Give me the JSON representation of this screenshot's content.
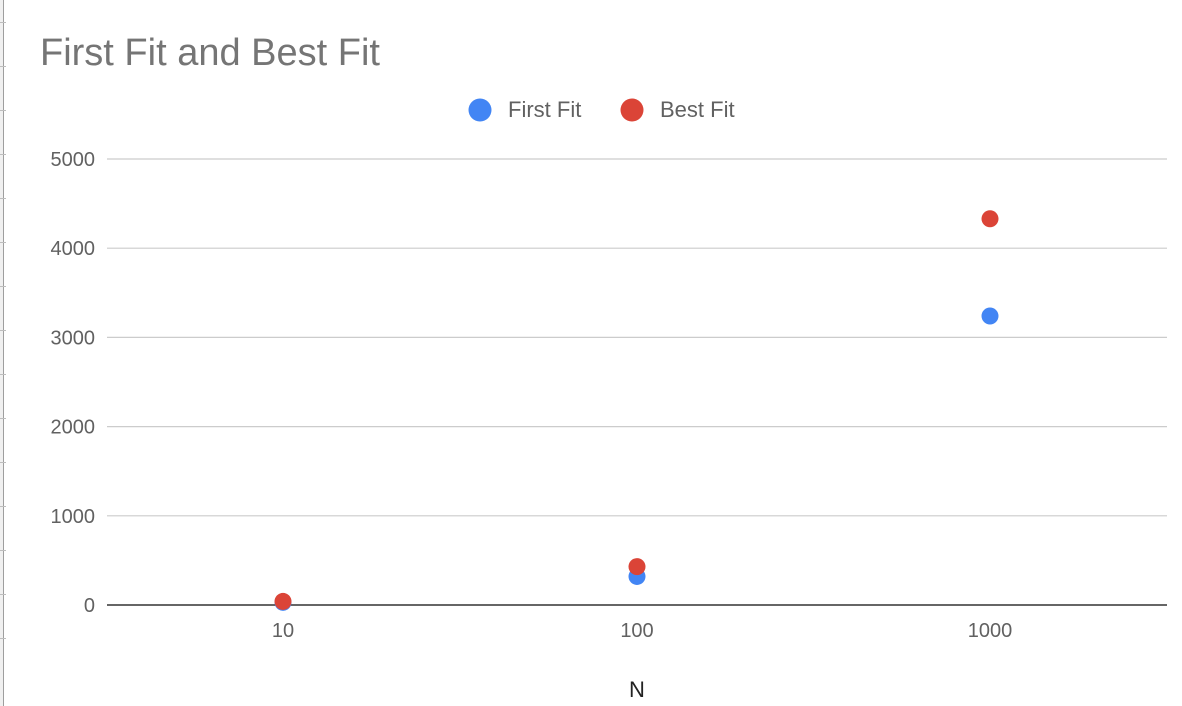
{
  "chart_data": {
    "type": "scatter",
    "title": "First Fit and Best Fit",
    "xlabel": "N",
    "ylabel": "",
    "x_scale": "log",
    "categories": [
      "10",
      "100",
      "1000"
    ],
    "x": [
      10,
      100,
      1000
    ],
    "ylim": [
      0,
      5000
    ],
    "yticks": [
      "0",
      "1000",
      "2000",
      "3000",
      "4000",
      "5000"
    ],
    "grid": true,
    "legend_position": "top",
    "series": [
      {
        "name": "First Fit",
        "color": "#4285f4",
        "values": [
          30,
          320,
          3240
        ]
      },
      {
        "name": "Best Fit",
        "color": "#db4437",
        "values": [
          40,
          430,
          4330
        ]
      }
    ]
  }
}
